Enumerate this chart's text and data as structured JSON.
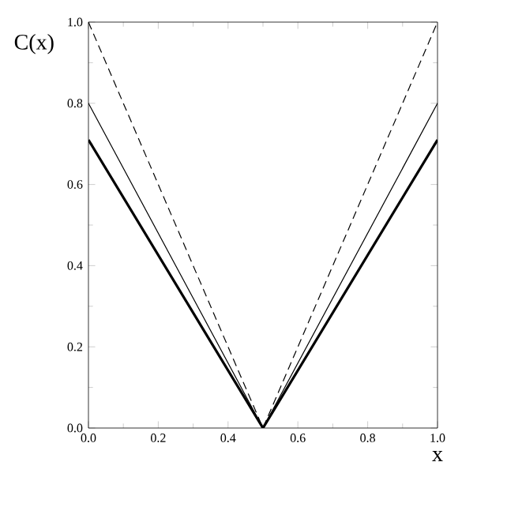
{
  "chart_data": {
    "type": "line",
    "xlabel": "x",
    "ylabel": "C(x)",
    "x": [
      0,
      0.5,
      1
    ],
    "series": [
      {
        "color": "#000000",
        "values": [
          0.71,
          0,
          0.71
        ],
        "line_style": "solid"
      },
      {
        "color": "#000000",
        "values": [
          0.8,
          0,
          0.8
        ],
        "line_style": "solid"
      },
      {
        "color": "#000000",
        "values": [
          1.0,
          0,
          1.0
        ],
        "line_style": "dashed"
      }
    ],
    "xlim": [
      0,
      1
    ],
    "ylim": [
      0,
      1
    ],
    "xticks": [
      {
        "value": 0,
        "label": "0.0"
      },
      {
        "value": 0.2,
        "label": "0.2"
      },
      {
        "value": 0.4,
        "label": "0.4"
      },
      {
        "value": 0.6,
        "label": "0.6"
      },
      {
        "value": 0.8,
        "label": "0.8"
      },
      {
        "value": 1,
        "label": "1.0"
      }
    ],
    "yticks": [
      {
        "value": 0,
        "label": "0.0"
      },
      {
        "value": 0.2,
        "label": "0.2"
      },
      {
        "value": 0.4,
        "label": "0.4"
      },
      {
        "value": 0.6,
        "label": "0.6"
      },
      {
        "value": 0.8,
        "label": "0.8"
      },
      {
        "value": 1,
        "label": "1.0"
      }
    ],
    "grid": false,
    "marker": "none"
  }
}
